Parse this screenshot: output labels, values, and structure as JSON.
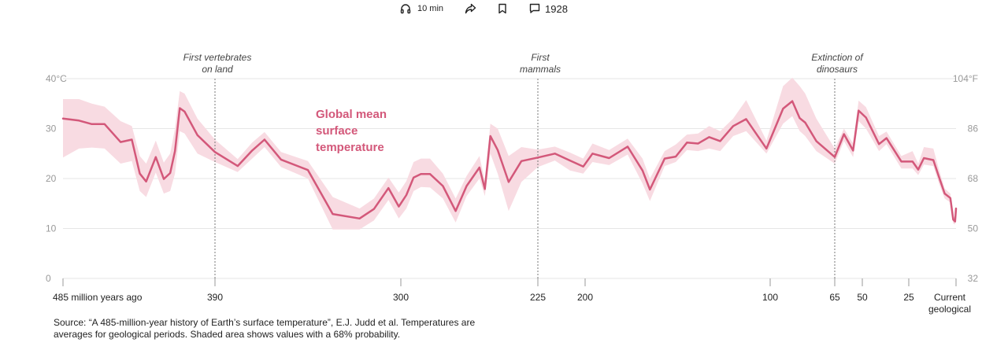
{
  "toolbar": {
    "listen_label": "10 min",
    "comments_count": "1928",
    "icons": [
      "headphones-icon",
      "share-icon",
      "bookmark-icon",
      "comment-icon"
    ]
  },
  "colors": {
    "line": "#d3587a",
    "band": "#f8dbe2",
    "grid": "#e6e6e6",
    "axis_text": "#999999",
    "annotation_text": "#444444"
  },
  "chart_data": {
    "type": "line",
    "title": "Global mean surface temperature",
    "title_lines": [
      "Global mean",
      "surface",
      "temperature"
    ],
    "xlabel": "",
    "ylabel": "",
    "x_unit": "million years ago",
    "y_unit": "°C",
    "ylim": [
      0,
      40
    ],
    "y_ticks_left": [
      {
        "value": 0,
        "label": "0"
      },
      {
        "value": 10,
        "label": "10"
      },
      {
        "value": 20,
        "label": "20"
      },
      {
        "value": 30,
        "label": "30"
      },
      {
        "value": 40,
        "label": "40°C"
      }
    ],
    "y_ticks_right": [
      {
        "value": 0,
        "label": "32"
      },
      {
        "value": 10,
        "label": "50"
      },
      {
        "value": 20,
        "label": "68"
      },
      {
        "value": 30,
        "label": "86"
      },
      {
        "value": 40,
        "label": "104°F"
      }
    ],
    "x_ticks": [
      {
        "value": 485,
        "label": "485 million years ago"
      },
      {
        "value": 390,
        "label": "390"
      },
      {
        "value": 300,
        "label": "300"
      },
      {
        "value": 225,
        "label": "225"
      },
      {
        "value": 200,
        "label": "200"
      },
      {
        "value": 100,
        "label": "100"
      },
      {
        "value": 65,
        "label": "65"
      },
      {
        "value": 50,
        "label": "50"
      },
      {
        "value": 25,
        "label": "25"
      },
      {
        "value": 0,
        "label": "Current geological stage"
      }
    ],
    "annotations": [
      {
        "x": 390,
        "label": "First vertebrates on land"
      },
      {
        "x": 225,
        "label": "First mammals"
      },
      {
        "x": 65,
        "label": "Extinction of dinosaurs"
      }
    ],
    "grid": true,
    "band_description": "68% probability range",
    "series": [
      {
        "points": [
          {
            "x": 485,
            "y": 32.0,
            "lo": 24.2,
            "hi": 35.9
          },
          {
            "x": 475,
            "y": 31.6,
            "lo": 26.0,
            "hi": 35.9
          },
          {
            "x": 467,
            "y": 30.9,
            "lo": 26.2,
            "hi": 35.0
          },
          {
            "x": 459,
            "y": 30.9,
            "lo": 26.0,
            "hi": 34.4
          },
          {
            "x": 449,
            "y": 27.3,
            "lo": 23.0,
            "hi": 31.5
          },
          {
            "x": 442,
            "y": 27.8,
            "lo": 23.5,
            "hi": 30.5
          },
          {
            "x": 437,
            "y": 21.0,
            "lo": 17.5,
            "hi": 24.5
          },
          {
            "x": 433,
            "y": 19.4,
            "lo": 16.3,
            "hi": 23.0
          },
          {
            "x": 427,
            "y": 24.3,
            "lo": 21.2,
            "hi": 27.6
          },
          {
            "x": 422,
            "y": 19.9,
            "lo": 17.0,
            "hi": 23.2
          },
          {
            "x": 418,
            "y": 21.1,
            "lo": 17.5,
            "hi": 25.0
          },
          {
            "x": 415,
            "y": 25.5,
            "lo": 21.0,
            "hi": 30.0
          },
          {
            "x": 412,
            "y": 34.1,
            "lo": 29.5,
            "hi": 37.5
          },
          {
            "x": 409,
            "y": 33.4,
            "lo": 29.0,
            "hi": 37.0
          },
          {
            "x": 401,
            "y": 28.7,
            "lo": 25.0,
            "hi": 32.0
          },
          {
            "x": 390,
            "y": 25.3,
            "lo": 23.3,
            "hi": 27.8
          },
          {
            "x": 379,
            "y": 22.5,
            "lo": 21.3,
            "hi": 23.9
          },
          {
            "x": 372,
            "y": 25.6,
            "lo": 24.0,
            "hi": 27.2
          },
          {
            "x": 366,
            "y": 27.8,
            "lo": 26.3,
            "hi": 29.3
          },
          {
            "x": 358,
            "y": 23.8,
            "lo": 22.3,
            "hi": 25.3
          },
          {
            "x": 345,
            "y": 21.7,
            "lo": 20.0,
            "hi": 23.5
          },
          {
            "x": 333,
            "y": 12.9,
            "lo": 9.8,
            "hi": 16.3
          },
          {
            "x": 320,
            "y": 12.0,
            "lo": 9.8,
            "hi": 14.0
          },
          {
            "x": 313,
            "y": 13.9,
            "lo": 11.6,
            "hi": 16.0
          },
          {
            "x": 306,
            "y": 18.1,
            "lo": 15.7,
            "hi": 20.2
          },
          {
            "x": 301,
            "y": 14.4,
            "lo": 12.0,
            "hi": 17.2
          },
          {
            "x": 297,
            "y": 16.7,
            "lo": 14.0,
            "hi": 19.5
          },
          {
            "x": 293,
            "y": 20.2,
            "lo": 17.5,
            "hi": 23.3
          },
          {
            "x": 289,
            "y": 20.9,
            "lo": 18.3,
            "hi": 24.0
          },
          {
            "x": 284,
            "y": 20.9,
            "lo": 18.2,
            "hi": 24.0
          },
          {
            "x": 277,
            "y": 18.5,
            "lo": 16.0,
            "hi": 21.0
          },
          {
            "x": 270,
            "y": 13.5,
            "lo": 11.2,
            "hi": 16.0
          },
          {
            "x": 264,
            "y": 18.5,
            "lo": 16.5,
            "hi": 20.5
          },
          {
            "x": 257,
            "y": 22.2,
            "lo": 20.0,
            "hi": 24.5
          },
          {
            "x": 254,
            "y": 17.9,
            "lo": 16.5,
            "hi": 19.5
          },
          {
            "x": 251,
            "y": 28.5,
            "lo": 25.0,
            "hi": 31.0
          },
          {
            "x": 247,
            "y": 25.7,
            "lo": 21.0,
            "hi": 30.0
          },
          {
            "x": 241,
            "y": 19.3,
            "lo": 13.5,
            "hi": 24.5
          },
          {
            "x": 234,
            "y": 23.5,
            "lo": 19.3,
            "hi": 26.3
          },
          {
            "x": 225,
            "y": 24.2,
            "lo": 22.3,
            "hi": 25.8
          },
          {
            "x": 216,
            "y": 25.0,
            "lo": 23.6,
            "hi": 26.4
          },
          {
            "x": 208,
            "y": 23.6,
            "lo": 21.6,
            "hi": 25.2
          },
          {
            "x": 201,
            "y": 22.4,
            "lo": 21.0,
            "hi": 24.0
          },
          {
            "x": 196,
            "y": 25.0,
            "lo": 23.3,
            "hi": 27.0
          },
          {
            "x": 187,
            "y": 24.1,
            "lo": 22.7,
            "hi": 25.7
          },
          {
            "x": 177,
            "y": 26.4,
            "lo": 24.8,
            "hi": 28.0
          },
          {
            "x": 169,
            "y": 21.6,
            "lo": 19.0,
            "hi": 24.0
          },
          {
            "x": 165,
            "y": 17.8,
            "lo": 15.5,
            "hi": 20.0
          },
          {
            "x": 157,
            "y": 24.0,
            "lo": 22.5,
            "hi": 25.5
          },
          {
            "x": 151,
            "y": 24.4,
            "lo": 23.3,
            "hi": 26.8
          },
          {
            "x": 145,
            "y": 27.2,
            "lo": 25.7,
            "hi": 28.8
          },
          {
            "x": 139,
            "y": 27.0,
            "lo": 25.5,
            "hi": 29.0
          },
          {
            "x": 133,
            "y": 28.3,
            "lo": 26.0,
            "hi": 30.5
          },
          {
            "x": 127,
            "y": 27.5,
            "lo": 25.5,
            "hi": 29.5
          },
          {
            "x": 120,
            "y": 30.5,
            "lo": 28.5,
            "hi": 32.0
          },
          {
            "x": 113,
            "y": 31.9,
            "lo": 29.5,
            "hi": 35.7
          },
          {
            "x": 102,
            "y": 26.0,
            "lo": 25.0,
            "hi": 27.6
          },
          {
            "x": 93,
            "y": 34.0,
            "lo": 31.0,
            "hi": 38.5
          },
          {
            "x": 88,
            "y": 35.5,
            "lo": 32.5,
            "hi": 40.2
          },
          {
            "x": 84,
            "y": 32.1,
            "lo": 29.5,
            "hi": 38.5
          },
          {
            "x": 81,
            "y": 31.2,
            "lo": 28.5,
            "hi": 37.0
          },
          {
            "x": 75,
            "y": 27.5,
            "lo": 25.5,
            "hi": 32.0
          },
          {
            "x": 65,
            "y": 24.3,
            "lo": 23.0,
            "hi": 26.0
          },
          {
            "x": 60,
            "y": 28.9,
            "lo": 27.5,
            "hi": 30.0
          },
          {
            "x": 55,
            "y": 25.6,
            "lo": 24.3,
            "hi": 27.0
          },
          {
            "x": 52,
            "y": 33.6,
            "lo": 31.5,
            "hi": 35.6
          },
          {
            "x": 48,
            "y": 32.2,
            "lo": 30.0,
            "hi": 34.3
          },
          {
            "x": 41,
            "y": 26.9,
            "lo": 25.5,
            "hi": 28.5
          },
          {
            "x": 37,
            "y": 28.1,
            "lo": 26.9,
            "hi": 29.4
          },
          {
            "x": 29,
            "y": 23.4,
            "lo": 22.0,
            "hi": 24.5
          },
          {
            "x": 23,
            "y": 23.4,
            "lo": 22.0,
            "hi": 25.5
          },
          {
            "x": 20,
            "y": 21.8,
            "lo": 20.7,
            "hi": 23.0
          },
          {
            "x": 17,
            "y": 24.1,
            "lo": 22.8,
            "hi": 26.3
          },
          {
            "x": 12,
            "y": 23.7,
            "lo": 22.5,
            "hi": 26.0
          },
          {
            "x": 9,
            "y": 20.3,
            "lo": 19.0,
            "hi": 21.8
          },
          {
            "x": 6,
            "y": 17.0,
            "lo": 16.0,
            "hi": 18.0
          },
          {
            "x": 3,
            "y": 16.1,
            "lo": 15.2,
            "hi": 17.0
          },
          {
            "x": 1.5,
            "y": 11.8,
            "lo": 11.0,
            "hi": 12.5
          },
          {
            "x": 0.5,
            "y": 11.4,
            "lo": 10.8,
            "hi": 12.1
          },
          {
            "x": 0,
            "y": 14.0,
            "lo": 13.2,
            "hi": 14.8
          }
        ]
      }
    ]
  },
  "source": {
    "line1": "Source: “A 485-million-year history of Earth’s surface temperature”, E.J. Judd et al. Temperatures are",
    "line2": "averages for geological periods. Shaded area shows values with a 68% probability."
  }
}
